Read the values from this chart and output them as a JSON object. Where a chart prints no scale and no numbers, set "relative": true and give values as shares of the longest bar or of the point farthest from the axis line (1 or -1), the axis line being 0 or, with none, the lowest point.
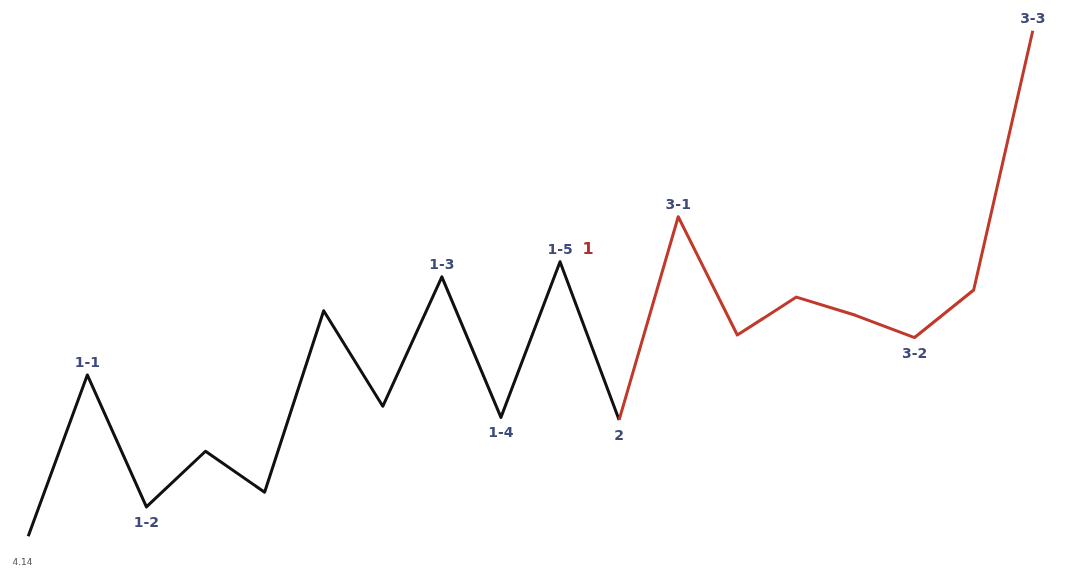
{
  "chart_data": {
    "type": "line",
    "relative": true,
    "tick_labels": false,
    "marker": "none",
    "line_style": "solid",
    "categories": [
      null,
      null,
      null,
      null,
      null,
      null,
      null,
      null,
      null,
      null,
      null,
      null,
      null,
      null,
      null,
      null,
      null,
      null
    ],
    "series": [
      {
        "color": "#111111",
        "values": [
          0,
          0.319,
          0.058,
          0.168,
          0.087,
          0.446,
          0.257,
          0.513,
          0.235,
          0.543,
          0.23,
          null,
          null,
          null,
          null,
          null,
          null,
          null
        ]
      },
      {
        "color": "#c0392b",
        "values": [
          null,
          null,
          null,
          null,
          null,
          null,
          null,
          null,
          null,
          null,
          0.23,
          0.632,
          0.398,
          0.473,
          0.437,
          0.393,
          0.487,
          1
        ]
      }
    ],
    "annotations": [
      {
        "text": "1-1",
        "y": 0.319
      },
      {
        "text": "1-2",
        "y": 0.058
      },
      {
        "text": "1-3",
        "y": 0.513
      },
      {
        "text": "1-4",
        "y": 0.235
      },
      {
        "text": "1-5",
        "y": 0.543
      },
      "1",
      {
        "text": "2",
        "y": 0.23
      },
      {
        "text": "3-1",
        "y": 0.632
      },
      {
        "text": "3-2",
        "y": 0.393
      },
      {
        "text": "3-3",
        "y": 1
      },
      "4.14"
    ]
  }
}
